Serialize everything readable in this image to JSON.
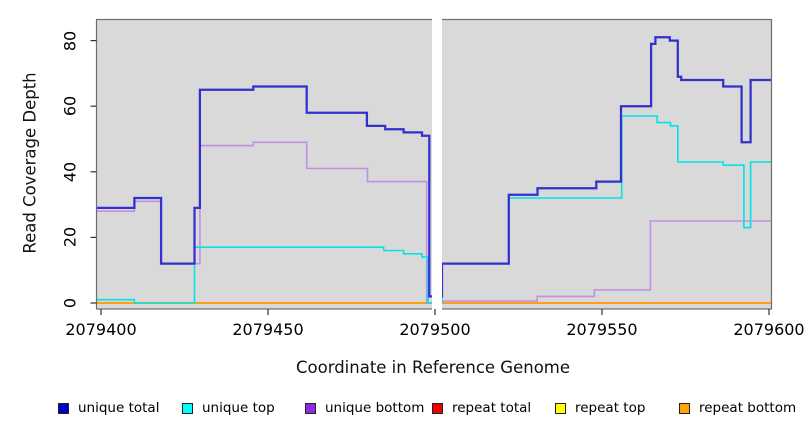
{
  "chart_data": {
    "type": "line",
    "step_style": "step-after",
    "title": "",
    "xlabel": "Coordinate in Reference Genome",
    "ylabel": "Read Coverage Depth",
    "grid": "off",
    "plot_bg_color": "#d9d9d9",
    "x_axis_domain": [
      2079398.65,
      2079600.75
    ],
    "y_axis_domain": [
      -1.8,
      86.4
    ],
    "x_ticks": [
      2079400,
      2079450,
      2079500,
      2079550,
      2079600
    ],
    "x_tick_labels": [
      "2079400",
      "2079450",
      "2079500",
      "2079550",
      "2079600"
    ],
    "y_ticks": [
      0,
      20,
      40,
      60,
      80
    ],
    "y_tick_labels": [
      "0",
      "20",
      "40",
      "60",
      "80"
    ],
    "masked_region": {
      "x_start": 2079499.1,
      "x_end": 2079502.1,
      "color": "#ffffff"
    },
    "legend_position": "bottom",
    "series": [
      {
        "name": "unique total",
        "line_color": "#3231d0",
        "swatch_color": "#0000cd",
        "line_width": 2.25,
        "z": 6,
        "points": [
          [
            2079398.7,
            29
          ],
          [
            2079410,
            32
          ],
          [
            2079418,
            12
          ],
          [
            2079428,
            29
          ],
          [
            2079429.6,
            65
          ],
          [
            2079445.6,
            66
          ],
          [
            2079461.6,
            58
          ],
          [
            2079479.6,
            54
          ],
          [
            2079485.1,
            53
          ],
          [
            2079490.6,
            52
          ],
          [
            2079496.1,
            51
          ],
          [
            2079498.3,
            2
          ],
          [
            2079502.1,
            12
          ],
          [
            2079522.1,
            33
          ],
          [
            2079530.7,
            35
          ],
          [
            2079548.3,
            37
          ],
          [
            2079555.7,
            60
          ],
          [
            2079564.7,
            79
          ],
          [
            2079566,
            81
          ],
          [
            2079570.3,
            80
          ],
          [
            2079572.7,
            69
          ],
          [
            2079573.7,
            68
          ],
          [
            2079586.3,
            66
          ],
          [
            2079591.8,
            49
          ],
          [
            2079594.5,
            68
          ]
        ]
      },
      {
        "name": "unique top",
        "line_color": "#00e4e4",
        "swatch_color": "#00ffff",
        "line_width": 1.6,
        "z": 5,
        "points": [
          [
            2079398.7,
            1
          ],
          [
            2079410,
            0
          ],
          [
            2079428,
            17
          ],
          [
            2079484.6,
            16
          ],
          [
            2079490.6,
            15
          ],
          [
            2079496.1,
            14
          ],
          [
            2079497.9,
            0
          ],
          [
            2079502.1,
            12
          ],
          [
            2079522.1,
            32
          ],
          [
            2079555.9,
            57
          ],
          [
            2079566.5,
            55
          ],
          [
            2079570.5,
            54
          ],
          [
            2079572.7,
            43
          ],
          [
            2079586.3,
            42
          ],
          [
            2079592.5,
            23
          ],
          [
            2079594.5,
            43
          ]
        ]
      },
      {
        "name": "unique bottom",
        "line_color": "#c28fe4",
        "swatch_color": "#8d2be0",
        "line_width": 1.6,
        "z": 4,
        "points": [
          [
            2079398.7,
            28
          ],
          [
            2079410,
            31
          ],
          [
            2079418,
            12
          ],
          [
            2079429.6,
            48
          ],
          [
            2079445.6,
            49
          ],
          [
            2079461.6,
            41
          ],
          [
            2079479.8,
            37
          ],
          [
            2079497.5,
            0
          ],
          [
            2079502.1,
            0.6
          ],
          [
            2079530.6,
            2
          ],
          [
            2079547.7,
            4
          ],
          [
            2079564.5,
            25
          ]
        ]
      },
      {
        "name": "repeat total",
        "line_color": "#dd1111",
        "swatch_color": "#ee0000",
        "line_width": 1.5,
        "z": 2,
        "points": [
          [
            2079398.7,
            0
          ]
        ]
      },
      {
        "name": "repeat top",
        "line_color": "#ffff00",
        "swatch_color": "#ffff00",
        "line_width": 1.5,
        "z": 1,
        "points": [
          [
            2079398.7,
            0
          ]
        ]
      },
      {
        "name": "repeat bottom",
        "line_color": "#ff9d18",
        "swatch_color": "#ffa300",
        "line_width": 2,
        "z": 3,
        "points": [
          [
            2079398.7,
            0
          ]
        ]
      }
    ]
  },
  "legend": {
    "items": [
      {
        "label": "unique total",
        "color": "#0000cd"
      },
      {
        "label": "unique top",
        "color": "#00ffff"
      },
      {
        "label": "unique bottom",
        "color": "#8d2be0"
      },
      {
        "label": "repeat total",
        "color": "#ee0000"
      },
      {
        "label": "repeat top",
        "color": "#ffff00"
      },
      {
        "label": "repeat bottom",
        "color": "#ffa300"
      }
    ]
  }
}
